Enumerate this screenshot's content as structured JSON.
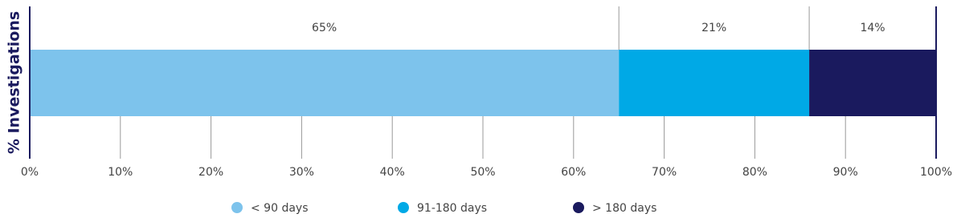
{
  "chart_data": {
    "type": "stacked-bar",
    "orientation": "horizontal",
    "y_label": "% Investigations",
    "categories": [
      null
    ],
    "series": [
      {
        "name": "< 90 days",
        "color": "#7dc3ec",
        "values": [
          65
        ],
        "value_labels": [
          "65%"
        ]
      },
      {
        "name": "91-180 days",
        "color": "#00a9e6",
        "values": [
          21
        ],
        "value_labels": [
          "21%"
        ]
      },
      {
        "name": "> 180 days",
        "color": "#1a1a5e",
        "values": [
          14
        ],
        "value_labels": [
          "14%"
        ]
      }
    ],
    "xlim": [
      0,
      100
    ],
    "xticks": [
      {
        "value": 0,
        "label": "0%"
      },
      {
        "value": 10,
        "label": "10%"
      },
      {
        "value": 20,
        "label": "20%"
      },
      {
        "value": 30,
        "label": "30%"
      },
      {
        "value": 40,
        "label": "40%"
      },
      {
        "value": 50,
        "label": "50%"
      },
      {
        "value": 60,
        "label": "60%"
      },
      {
        "value": 70,
        "label": "70%"
      },
      {
        "value": 80,
        "label": "80%"
      },
      {
        "value": 90,
        "label": "90%"
      },
      {
        "value": 100,
        "label": "100%"
      }
    ],
    "grid": true,
    "legend": "bottom"
  }
}
